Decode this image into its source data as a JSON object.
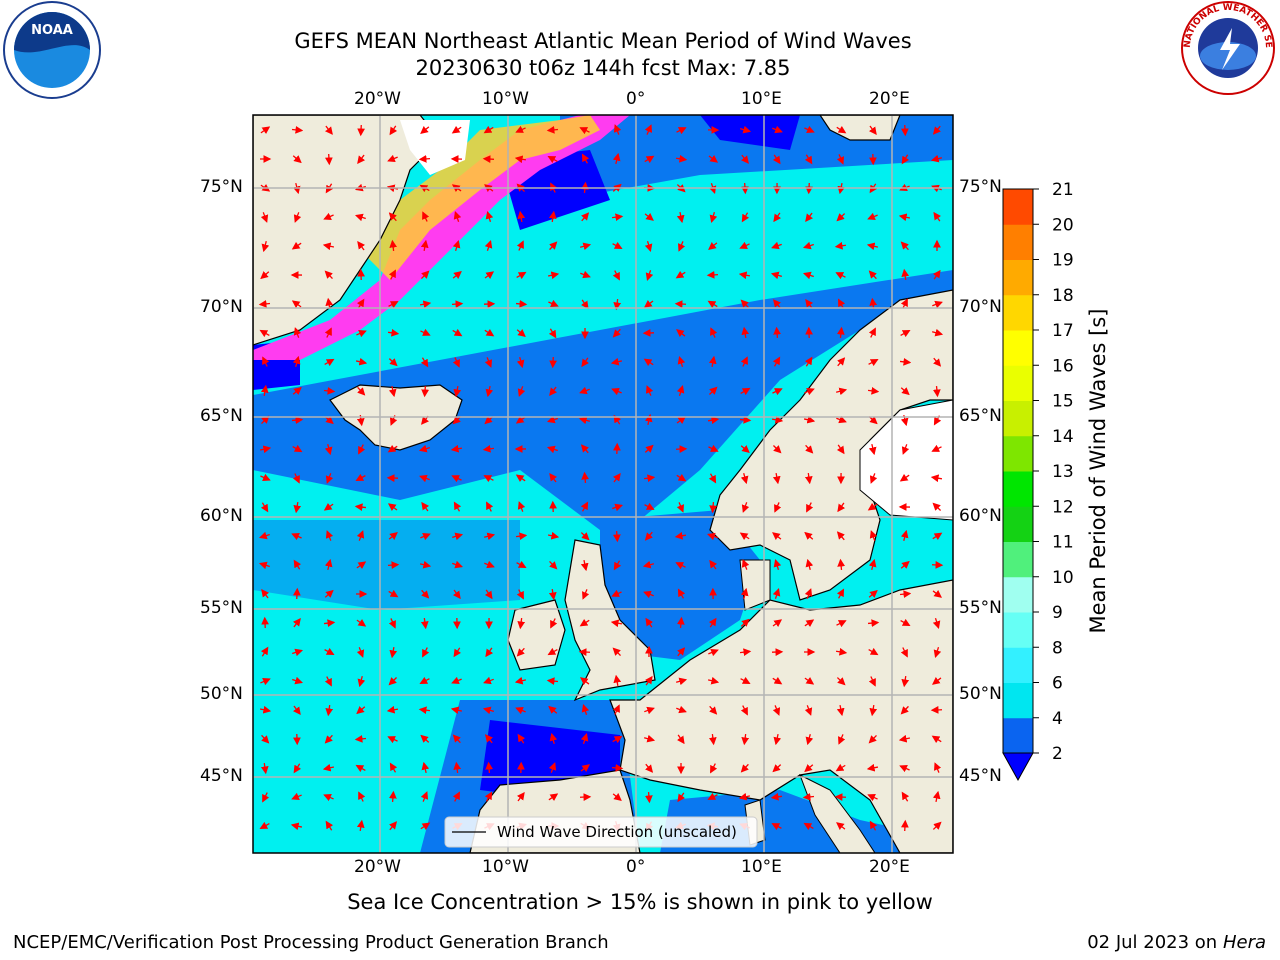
{
  "title_line1": "GEFS MEAN Northeast Atlantic Mean Period of Wind Waves",
  "title_line2": "20230630 t06z 144h fcst   Max: 7.85",
  "axes": {
    "lon_ticks": [
      "20°W",
      "10°W",
      "0°",
      "10°E",
      "20°E"
    ],
    "lat_ticks": [
      "75°N",
      "70°N",
      "65°N",
      "60°N",
      "55°N",
      "50°N",
      "45°N"
    ]
  },
  "colorbar": {
    "label": "Mean Period of Wind Waves [s]",
    "ticks": [
      "2",
      "4",
      "6",
      "8",
      "9",
      "10",
      "11",
      "12",
      "13",
      "14",
      "15",
      "16",
      "17",
      "18",
      "19",
      "20",
      "21"
    ],
    "colors": [
      "#0a64f0",
      "#00e6f0",
      "#33f0ff",
      "#66fff5",
      "#a0fff0",
      "#50f07c",
      "#14d214",
      "#00e600",
      "#7ee600",
      "#c8f000",
      "#eaff00",
      "#ffff00",
      "#ffd700",
      "#ffaa00",
      "#ff7f00",
      "#ff4a00",
      "#ff1400"
    ],
    "extend_color": "#0000ff"
  },
  "legend": {
    "label": "Wind Wave Direction (unscaled)"
  },
  "caption": "Sea Ice Concentration > 15% is shown in pink to yellow",
  "footer_left": "NCEP/EMC/Verification Post Processing Product Generation Branch",
  "footer_right_date": "02 Jul 2023 on ",
  "footer_right_host": "Hera",
  "logos": {
    "noaa": "NOAA",
    "nws": "NATIONAL WEATHER SERVICE"
  },
  "colors": {
    "land": "#efecdc",
    "ocean_light": "#00f0f0",
    "ocean_mid": "#0a78f0",
    "ocean_dark": "#0000ff",
    "ice_pink": "#ff3cf0",
    "ice_yellow": "#ffcc33",
    "arrow": "#ff0000",
    "grid": "#b4b4b4"
  }
}
